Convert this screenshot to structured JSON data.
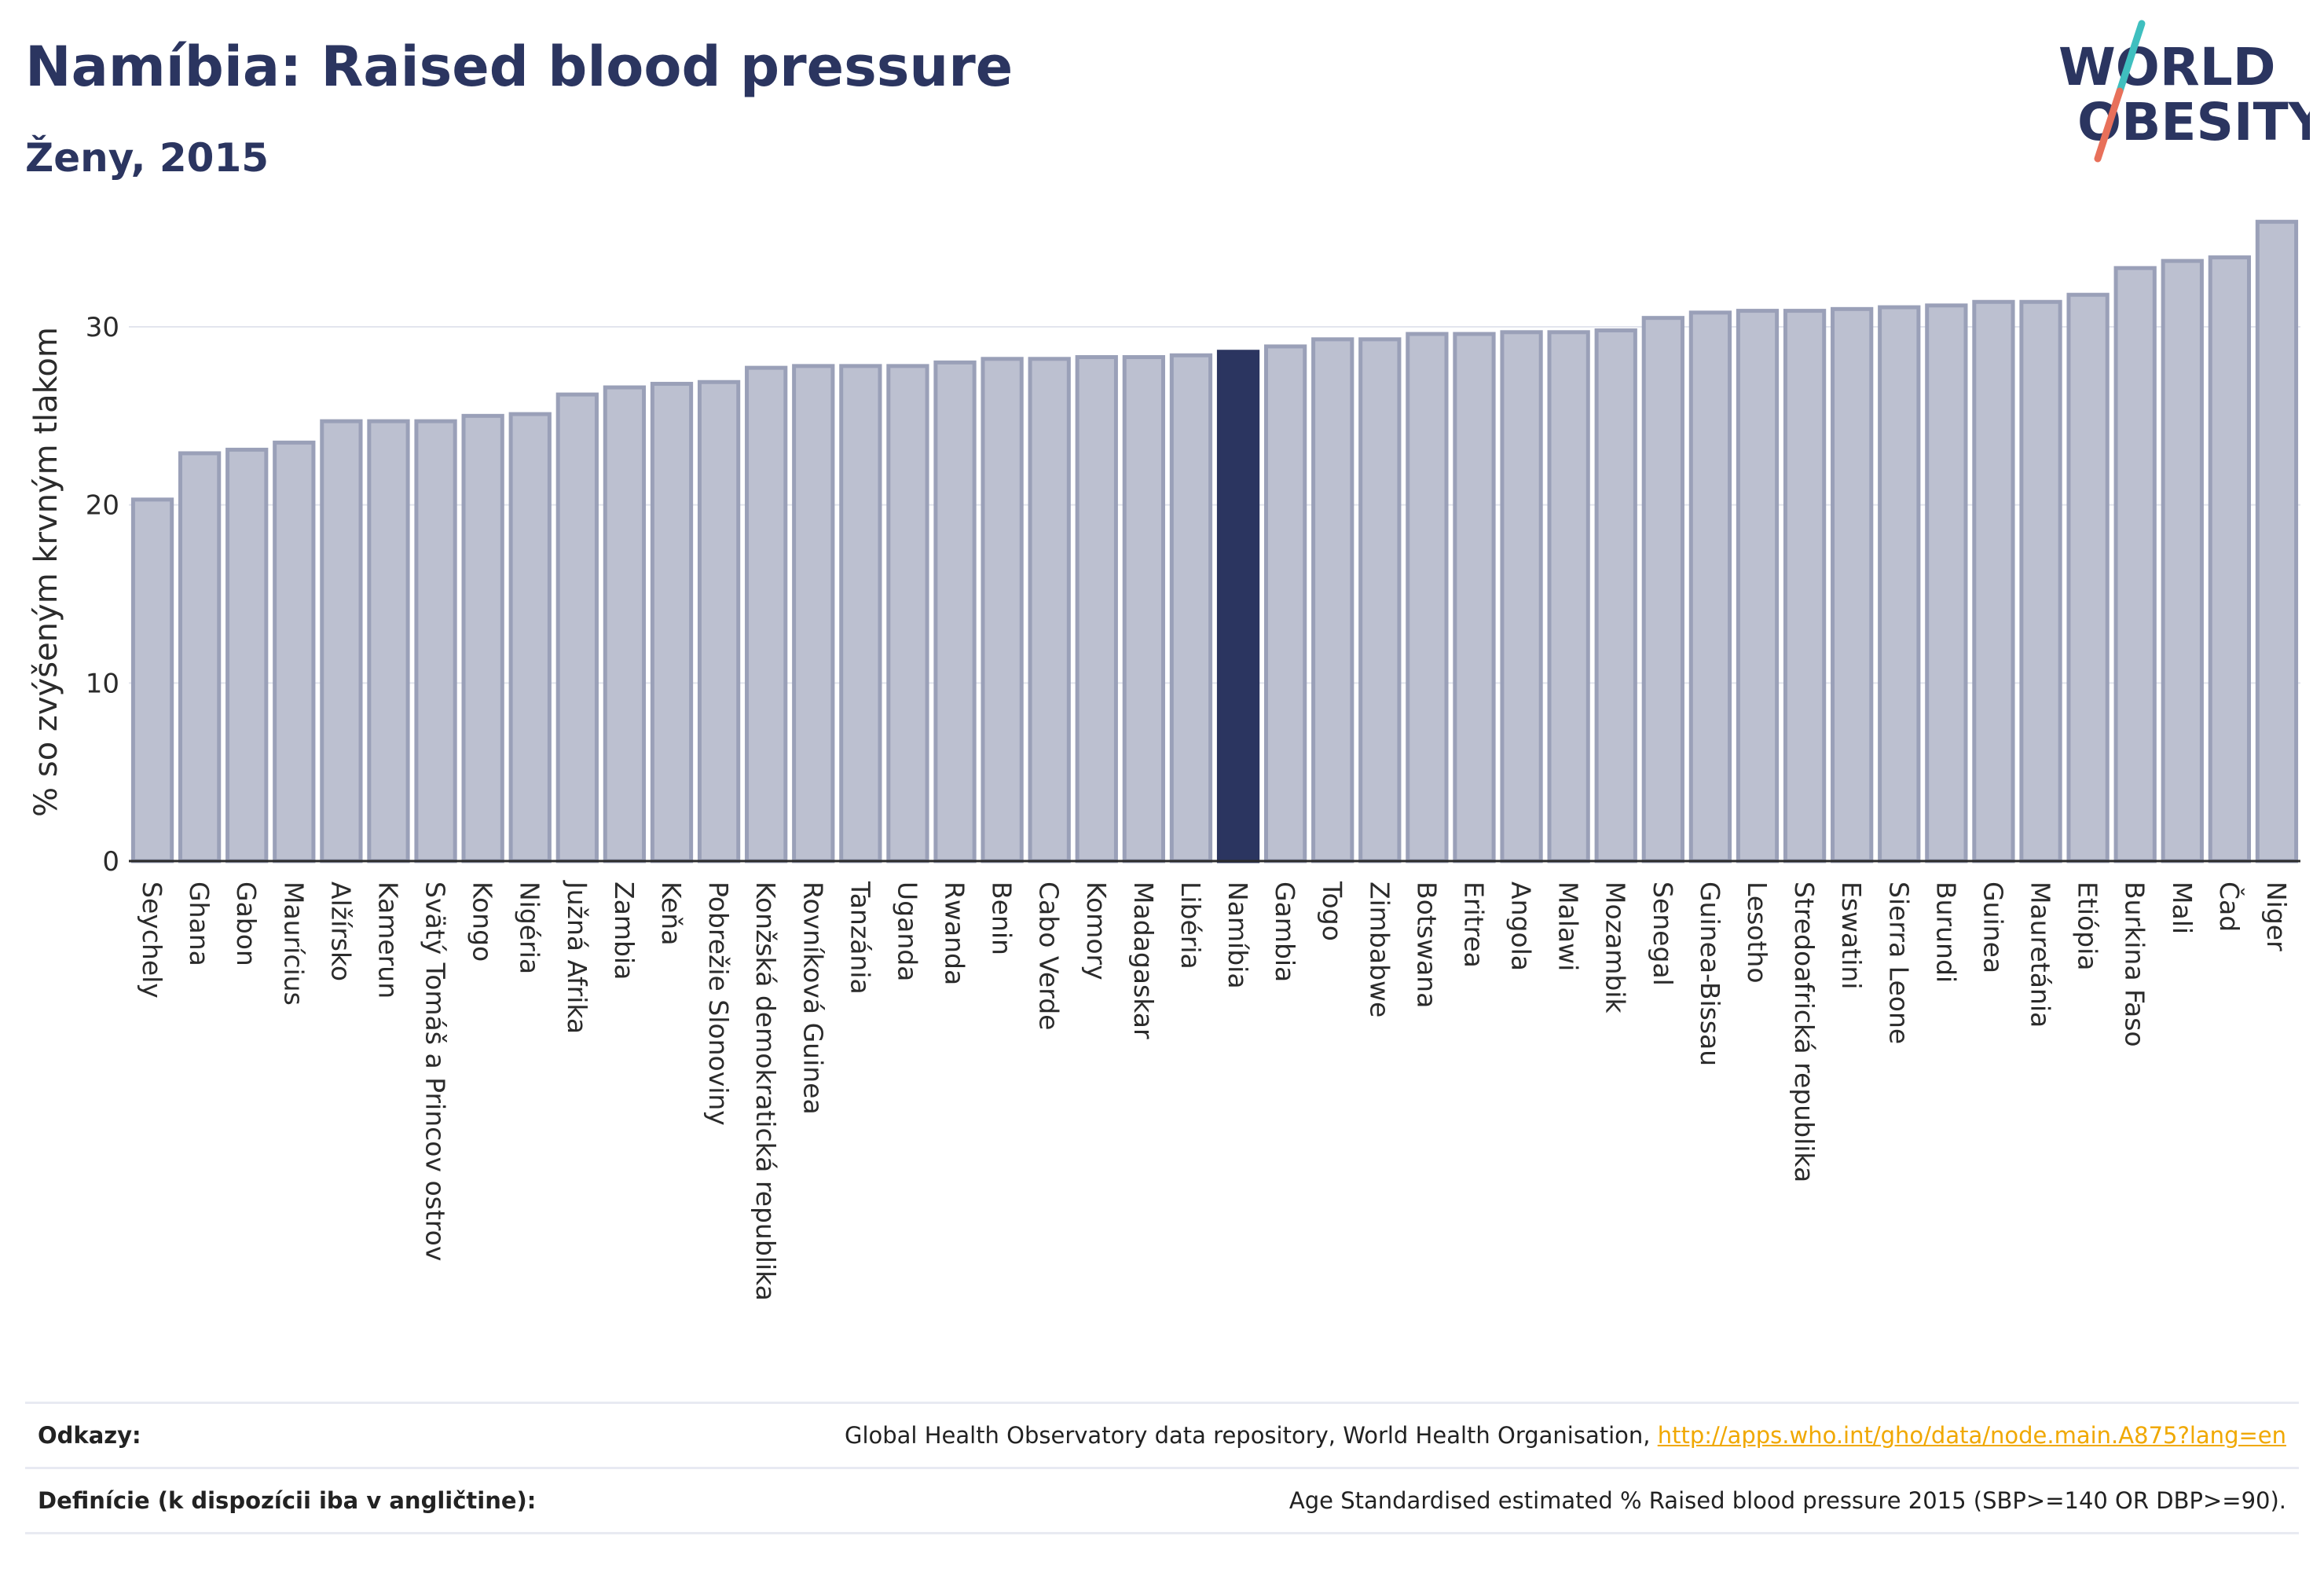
{
  "header": {
    "title": "Namíbia: Raised blood pressure",
    "subtitle": "Ženy, 2015"
  },
  "logo": {
    "line1": "WORLD",
    "line2": "OBESITY"
  },
  "colors": {
    "bar": "#bcc0d0",
    "bar_outline": "#9aa0b8",
    "highlight": "#2b3560",
    "grid": "#e3e5ee",
    "axis": "#2b2b2b",
    "link": "#f0a800",
    "logo_slash_teal": "#3fbfbf",
    "logo_slash_red": "#e8705a"
  },
  "chart_data": {
    "type": "bar",
    "title": "Namíbia: Raised blood pressure",
    "subtitle": "Ženy, 2015",
    "xlabel": "",
    "ylabel": "% so zvýšeným krvným tlakom",
    "ylim": [
      0,
      36
    ],
    "yticks": [
      0,
      10,
      20,
      30
    ],
    "grid": true,
    "highlight": "Namíbia",
    "categories": [
      "Seychely",
      "Ghana",
      "Gabon",
      "Maurícius",
      "Alžírsko",
      "Kamerun",
      "Svätý Tomáš a Princov ostrov",
      "Kongo",
      "Nigéria",
      "Južná Afrika",
      "Zambia",
      "Keňa",
      "Pobrežie Slonoviny",
      "Konžská demokratická republika",
      "Rovníková Guinea",
      "Tanzánia",
      "Uganda",
      "Rwanda",
      "Benin",
      "Cabo Verde",
      "Komory",
      "Madagaskar",
      "Libéria",
      "Namíbia",
      "Gambia",
      "Togo",
      "Zimbabwe",
      "Botswana",
      "Eritrea",
      "Angola",
      "Malawi",
      "Mozambik",
      "Senegal",
      "Guinea-Bissau",
      "Lesotho",
      "Stredoafrická republika",
      "Eswatini",
      "Sierra Leone",
      "Burundi",
      "Guinea",
      "Mauretánia",
      "Etiópia",
      "Burkina Faso",
      "Mali",
      "Čad",
      "Niger"
    ],
    "values": [
      20.3,
      22.9,
      23.1,
      23.5,
      24.7,
      24.7,
      24.7,
      25.0,
      25.1,
      26.2,
      26.6,
      26.8,
      26.9,
      27.7,
      27.8,
      27.8,
      27.8,
      28.0,
      28.2,
      28.2,
      28.3,
      28.3,
      28.4,
      28.6,
      28.9,
      29.3,
      29.3,
      29.6,
      29.6,
      29.7,
      29.7,
      29.8,
      30.5,
      30.8,
      30.9,
      30.9,
      31.0,
      31.1,
      31.2,
      31.4,
      31.4,
      31.8,
      33.3,
      33.7,
      33.9,
      35.9
    ]
  },
  "footer": {
    "references_label": "Odkazy:",
    "references_text": "Global Health Observatory data repository, World Health Organisation, ",
    "references_link": "http://apps.who.int/gho/data/node.main.A875?lang=en",
    "definitions_label": "Definície (k dispozícii iba v angličtine):",
    "definitions_text": "Age Standardised estimated % Raised blood pressure 2015 (SBP>=140 OR DBP>=90)."
  }
}
